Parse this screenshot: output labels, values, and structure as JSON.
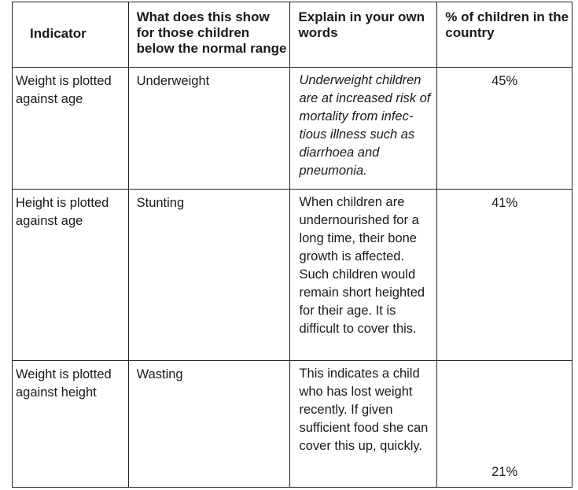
{
  "table": {
    "headers": [
      "Indicator",
      "What does this show for those children below the normal range",
      "Explain in your own words",
      "% of children in the country"
    ],
    "rows": [
      {
        "indicator": "Weight is plotted against age",
        "shows": "Underweight",
        "explain": "Underweight children are at increased risk of mortality from infec-tious illness such as diarrhoea and pneumonia.",
        "percent": "45%"
      },
      {
        "indicator": "Height is plotted against age",
        "shows": "Stunting",
        "explain": "When children are undernourished for a long time, their bone growth is affected. Such children would remain short heighted for their age. It is difficult to cover this.",
        "percent": "41%"
      },
      {
        "indicator": "Weight is plotted against height",
        "shows": "Wasting",
        "explain": "This indicates a child who has lost weight recently. If given sufficient food she can cover this up, quickly.",
        "percent": "21%"
      }
    ]
  }
}
